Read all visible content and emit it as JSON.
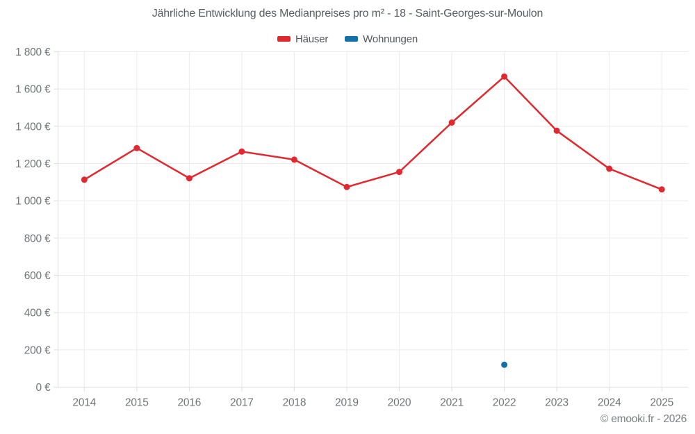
{
  "chart": {
    "title": "Jährliche Entwicklung des Medianpreises pro m² - 18 - Saint-Georges-sur-Moulon"
  },
  "footer": {
    "copyright": "© emooki.fr - 2026"
  },
  "chart_data": {
    "type": "line",
    "title": "Jährliche Entwicklung des Medianpreises pro m² - 18 - Saint-Georges-sur-Moulon",
    "categories": [
      "2014",
      "2015",
      "2016",
      "2017",
      "2018",
      "2019",
      "2020",
      "2021",
      "2022",
      "2023",
      "2024",
      "2025"
    ],
    "series": [
      {
        "name": "Häuser",
        "color": "#e0282e",
        "values": [
          1113,
          1283,
          1121,
          1264,
          1221,
          1074,
          1155,
          1420,
          1667,
          1376,
          1172,
          1061
        ]
      },
      {
        "name": "Wohnungen",
        "color": "#1272a8",
        "values": [
          null,
          null,
          null,
          null,
          null,
          null,
          null,
          null,
          120,
          null,
          null,
          null
        ]
      }
    ],
    "ylim": [
      0,
      1800
    ],
    "ytick_step": 200,
    "ytick_labels": [
      "0 €",
      "200 €",
      "400 €",
      "600 €",
      "800 €",
      "1 000 €",
      "1 200 €",
      "1 400 €",
      "1 600 €",
      "1 800 €"
    ],
    "xlabel": "",
    "ylabel": "",
    "grid": true,
    "legend_position": "top"
  }
}
